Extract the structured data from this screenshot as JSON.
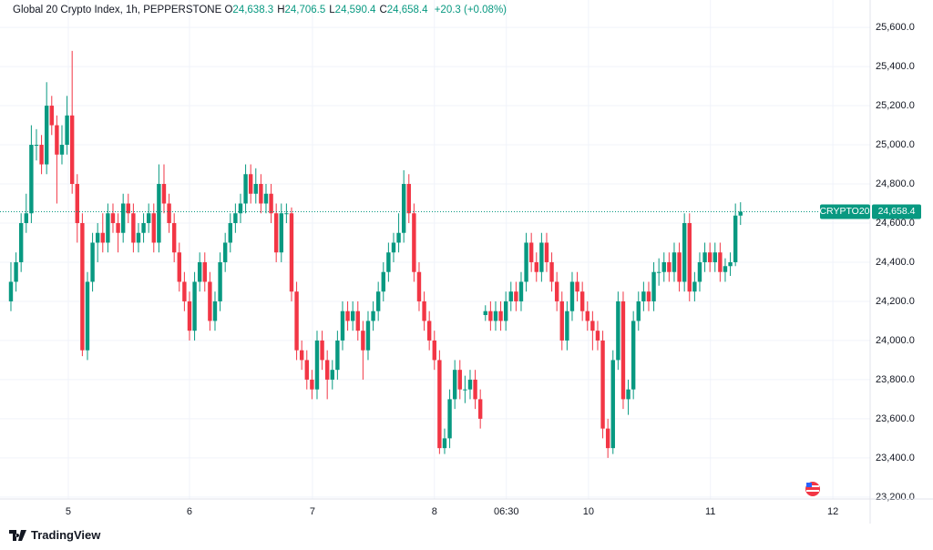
{
  "chart_data": {
    "type": "candlestick",
    "title": "Global 20 Crypto Index, 1h, PEPPERSTONE",
    "ohlc_header": [
      {
        "key": "O",
        "value": "24,638.3"
      },
      {
        "key": "H",
        "value": "24,706.5"
      },
      {
        "key": "L",
        "value": "24,590.4"
      },
      {
        "key": "C",
        "value": "24,658.4"
      }
    ],
    "change": "+20.3 (+0.08%)",
    "symbol": "CRYPTO20",
    "last_price_label": "24,658.4",
    "brand": "TradingView",
    "up_color": "#089981",
    "down_color": "#f23645",
    "grid": true,
    "xlim": [
      -2.14,
      168.4
    ],
    "xticks": [
      {
        "value": 11.25,
        "label": "5"
      },
      {
        "value": 35,
        "label": "6"
      },
      {
        "value": 59.1,
        "label": "7"
      },
      {
        "value": 83.0,
        "label": "8"
      },
      {
        "value": 97.1,
        "label": "06:30"
      },
      {
        "value": 113.2,
        "label": "10"
      },
      {
        "value": 137.1,
        "label": "11"
      },
      {
        "value": 161.1,
        "label": "12"
      }
    ],
    "ylim": [
      23190,
      25740
    ],
    "yticks": [
      {
        "value": 23200,
        "label": "23,200.0"
      },
      {
        "value": 23400,
        "label": "23,400.0"
      },
      {
        "value": 23600,
        "label": "23,600.0"
      },
      {
        "value": 23800,
        "label": "23,800.0"
      },
      {
        "value": 24000,
        "label": "24,000.0"
      },
      {
        "value": 24200,
        "label": "24,200.0"
      },
      {
        "value": 24400,
        "label": "24,400.0"
      },
      {
        "value": 24600,
        "label": "24,600.0"
      },
      {
        "value": 24800,
        "label": "24,800.0"
      },
      {
        "value": 25000,
        "label": "25,000.0"
      },
      {
        "value": 25200,
        "label": "25,200.0"
      },
      {
        "value": 25400,
        "label": "25,400.0"
      },
      {
        "value": 25600,
        "label": "25,600.0"
      }
    ],
    "open": [
      24200,
      24300,
      24400,
      24600,
      24650,
      25000,
      25000,
      24900,
      25200,
      25100,
      24950,
      25000,
      25150,
      24800,
      24600,
      23950,
      24300,
      24500,
      24550,
      24500,
      24650,
      24600,
      24550,
      24700,
      24650,
      24500,
      24550,
      24600,
      24650,
      24500,
      24800,
      24700,
      24600,
      24450,
      24300,
      24200,
      24050,
      24300,
      24400,
      24300,
      24100,
      24200,
      24400,
      24500,
      24600,
      24650,
      24700,
      24850,
      24750,
      24800,
      24700,
      24750,
      24650,
      24450,
      24650,
      24650,
      24250,
      23950,
      23900,
      23800,
      23750,
      24000,
      23900,
      23800,
      23850,
      24000,
      24150,
      24100,
      24150,
      24050,
      23950,
      24100,
      24150,
      24250,
      24350,
      24450,
      24500,
      24550,
      24800,
      24650,
      24350,
      24200,
      24100,
      24000,
      23900,
      23450,
      23500,
      23700,
      23850,
      23750,
      23750,
      23800,
      23700,
      24130,
      24150,
      24100,
      24150,
      24100,
      24200,
      24250,
      24200,
      24300,
      24500,
      24400,
      24350,
      24500,
      24400,
      24300,
      24200,
      24000,
      24150,
      24300,
      24250,
      24150,
      24100,
      24050,
      24000,
      23550,
      23450,
      23900,
      24200,
      23700,
      23750,
      24100,
      24200,
      24250,
      24200,
      24350,
      24350,
      24400,
      24350,
      24450,
      24300,
      24600,
      24250,
      24300,
      24400,
      24450,
      24400,
      24450,
      24350,
      24380,
      24400,
      24638.3
    ],
    "high": [
      24400,
      24450,
      24650,
      24750,
      25100,
      25080,
      25050,
      25320,
      25250,
      25150,
      25100,
      25250,
      25480,
      24850,
      24650,
      24350,
      24550,
      24600,
      24650,
      24700,
      24700,
      24650,
      24750,
      24750,
      24700,
      24600,
      24650,
      24700,
      24700,
      24900,
      24900,
      24750,
      24650,
      24500,
      24350,
      24250,
      24350,
      24450,
      24450,
      24350,
      24250,
      24450,
      24550,
      24650,
      24700,
      24750,
      24900,
      24900,
      24880,
      24850,
      24800,
      24800,
      24700,
      24700,
      24700,
      24680,
      24300,
      24000,
      23950,
      23850,
      24050,
      24050,
      23950,
      23900,
      24050,
      24200,
      24200,
      24200,
      24200,
      24100,
      24150,
      24200,
      24300,
      24400,
      24500,
      24550,
      24650,
      24870,
      24850,
      24700,
      24400,
      24250,
      24150,
      24050,
      23950,
      23550,
      23750,
      23900,
      23900,
      23820,
      23850,
      23850,
      23750,
      24180,
      24200,
      24200,
      24200,
      24250,
      24300,
      24300,
      24350,
      24550,
      24550,
      24450,
      24550,
      24550,
      24450,
      24350,
      24250,
      24200,
      24350,
      24350,
      24300,
      24200,
      24150,
      24100,
      24050,
      23600,
      23950,
      24250,
      24250,
      23800,
      24150,
      24250,
      24300,
      24300,
      24400,
      24420,
      24450,
      24450,
      24500,
      24500,
      24650,
      24650,
      24350,
      24450,
      24500,
      24500,
      24500,
      24500,
      24420,
      24450,
      24700,
      24706.5
    ],
    "low": [
      24150,
      24250,
      24350,
      24550,
      24600,
      24920,
      24850,
      24850,
      25050,
      24700,
      24900,
      24950,
      24750,
      24500,
      23920,
      23900,
      24250,
      24400,
      24450,
      24450,
      24550,
      24450,
      24500,
      24600,
      24450,
      24450,
      24500,
      24550,
      24450,
      24450,
      24650,
      24550,
      24400,
      24250,
      24150,
      24000,
      24000,
      24250,
      24250,
      24050,
      24050,
      24150,
      24350,
      24450,
      24550,
      24600,
      24650,
      24700,
      24700,
      24650,
      24650,
      24600,
      24400,
      24400,
      24600,
      24200,
      23900,
      23850,
      23750,
      23700,
      23700,
      23850,
      23700,
      23750,
      23800,
      23950,
      24050,
      24050,
      24000,
      23800,
      23900,
      24050,
      24100,
      24200,
      24300,
      24400,
      24450,
      24500,
      24600,
      24300,
      24150,
      24050,
      23950,
      23850,
      23420,
      23420,
      23450,
      23650,
      23700,
      23680,
      23700,
      23650,
      23550,
      24100,
      24050,
      24050,
      24050,
      24050,
      24150,
      24150,
      24150,
      24250,
      24350,
      24300,
      24300,
      24350,
      24250,
      24150,
      23950,
      23950,
      24100,
      24200,
      24100,
      24050,
      23950,
      23950,
      23500,
      23400,
      23420,
      23850,
      23650,
      23620,
      23700,
      24050,
      24150,
      24150,
      24150,
      24280,
      24300,
      24300,
      24300,
      24250,
      24250,
      24200,
      24200,
      24250,
      24350,
      24350,
      24350,
      24300,
      24300,
      24330,
      24380,
      24590.4
    ],
    "close": [
      24300,
      24400,
      24600,
      24650,
      25000,
      25000,
      24900,
      25200,
      25100,
      24950,
      25000,
      25150,
      24800,
      24600,
      23950,
      24300,
      24500,
      24550,
      24500,
      24650,
      24600,
      24550,
      24700,
      24650,
      24500,
      24550,
      24600,
      24650,
      24500,
      24800,
      24700,
      24600,
      24450,
      24300,
      24200,
      24050,
      24300,
      24400,
      24300,
      24100,
      24200,
      24400,
      24500,
      24600,
      24650,
      24700,
      24850,
      24750,
      24800,
      24700,
      24750,
      24650,
      24450,
      24650,
      24650,
      24250,
      23950,
      23900,
      23800,
      23750,
      24000,
      23900,
      23800,
      23850,
      24000,
      24150,
      24100,
      24150,
      24050,
      23950,
      24100,
      24150,
      24250,
      24350,
      24450,
      24500,
      24550,
      24800,
      24650,
      24350,
      24200,
      24100,
      24000,
      23900,
      23450,
      23500,
      23700,
      23850,
      23750,
      23750,
      23800,
      23700,
      23600,
      24150,
      24100,
      24150,
      24100,
      24200,
      24250,
      24200,
      24300,
      24500,
      24400,
      24350,
      24500,
      24400,
      24300,
      24200,
      24000,
      24150,
      24300,
      24250,
      24150,
      24100,
      24050,
      24000,
      23550,
      23450,
      23900,
      24200,
      23700,
      23750,
      24100,
      24200,
      24250,
      24200,
      24350,
      24350,
      24400,
      24350,
      24450,
      24300,
      24600,
      24250,
      24300,
      24400,
      24450,
      24400,
      24450,
      24350,
      24380,
      24400,
      24638.3,
      24658.4
    ]
  }
}
